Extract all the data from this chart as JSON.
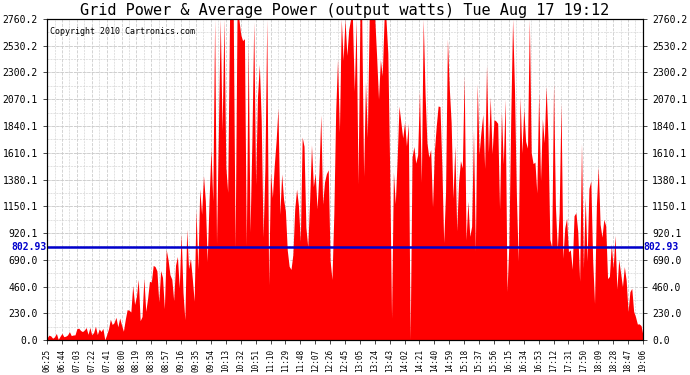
{
  "title": "Grid Power & Average Power (output watts) Tue Aug 17 19:12",
  "copyright": "Copyright 2010 Cartronics.com",
  "avg_line_value": 802.93,
  "avg_line_label": "802.93",
  "ylim": [
    0.0,
    2760.2
  ],
  "yticks": [
    0.0,
    230.0,
    460.0,
    690.0,
    920.1,
    1150.1,
    1380.1,
    1610.1,
    1840.1,
    2070.1,
    2300.2,
    2530.2,
    2760.2
  ],
  "background_color": "#ffffff",
  "fill_color": "#ff0000",
  "line_color": "#0000cc",
  "grid_color": "#cccccc",
  "title_fontsize": 11,
  "x_labels": [
    "06:25",
    "06:44",
    "07:03",
    "07:22",
    "07:41",
    "08:00",
    "08:19",
    "08:38",
    "08:57",
    "09:16",
    "09:35",
    "09:54",
    "10:13",
    "10:32",
    "10:51",
    "11:10",
    "11:29",
    "11:48",
    "12:07",
    "12:26",
    "12:45",
    "13:05",
    "13:24",
    "13:43",
    "14:02",
    "14:21",
    "14:40",
    "14:59",
    "15:18",
    "15:37",
    "15:56",
    "16:15",
    "16:34",
    "16:53",
    "17:12",
    "17:31",
    "17:50",
    "18:09",
    "18:28",
    "18:47",
    "19:06"
  ],
  "power_values": [
    30,
    40,
    55,
    80,
    120,
    180,
    280,
    380,
    520,
    650,
    780,
    950,
    2400,
    2650,
    1800,
    1600,
    950,
    1050,
    1200,
    1350,
    2700,
    2100,
    2600,
    1800,
    1750,
    1720,
    1680,
    1650,
    1700,
    1750,
    1720,
    1690,
    1650,
    1580,
    1480,
    1350,
    1150,
    900,
    650,
    380,
    60
  ],
  "noise_seed": 123
}
